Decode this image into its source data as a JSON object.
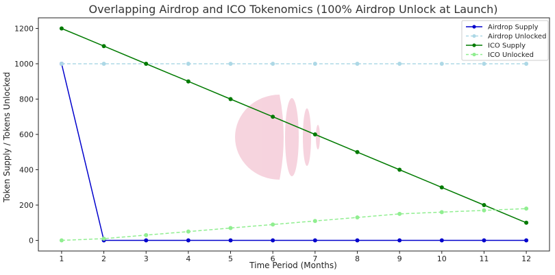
{
  "chart_data": {
    "type": "line",
    "title": "Overlapping Airdrop and ICO Tokenomics (100% Airdrop Unlock at Launch)",
    "xlabel": "Time Period (Months)",
    "ylabel": "Token Supply / Tokens Unlocked",
    "x": [
      1,
      2,
      3,
      4,
      5,
      6,
      7,
      8,
      9,
      10,
      11,
      12
    ],
    "xlim": [
      0.45,
      12.55
    ],
    "ylim": [
      -60,
      1260
    ],
    "yticks": [
      0,
      200,
      400,
      600,
      800,
      1000,
      1200
    ],
    "grid": false,
    "legend_position": "top-right",
    "series": [
      {
        "name": "Airdrop Supply",
        "color": "#0000cc",
        "style": "solid",
        "values": [
          1000,
          0,
          0,
          0,
          0,
          0,
          0,
          0,
          0,
          0,
          0,
          0
        ]
      },
      {
        "name": "Airdrop Unlocked",
        "color": "#add8e6",
        "style": "dashed",
        "values": [
          1000,
          1000,
          1000,
          1000,
          1000,
          1000,
          1000,
          1000,
          1000,
          1000,
          1000,
          1000
        ]
      },
      {
        "name": "ICO Supply",
        "color": "#007a00",
        "style": "solid",
        "values": [
          1200,
          1100,
          1000,
          900,
          800,
          700,
          600,
          500,
          400,
          300,
          200,
          100
        ]
      },
      {
        "name": "ICO Unlocked",
        "color": "#90ee90",
        "style": "dashed",
        "values": [
          0,
          10,
          30,
          50,
          70,
          90,
          110,
          130,
          150,
          160,
          170,
          180
        ]
      }
    ]
  }
}
